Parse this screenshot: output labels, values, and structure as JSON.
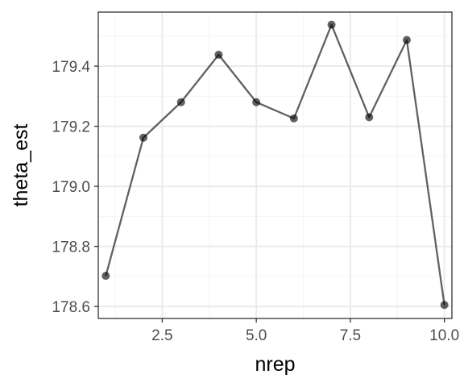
{
  "chart_data": {
    "type": "line",
    "xlabel": "nrep",
    "ylabel": "theta_est",
    "xlim": [
      0.8,
      10.2
    ],
    "ylim": [
      178.56,
      179.58
    ],
    "x_ticks": [
      2.5,
      5.0,
      7.5,
      10.0
    ],
    "x_tick_labels": [
      "2.5",
      "5.0",
      "7.5",
      "10.0"
    ],
    "x_minor_ticks": [
      1.25,
      3.75,
      6.25,
      8.75
    ],
    "y_ticks": [
      178.6,
      178.8,
      179.0,
      179.2,
      179.4
    ],
    "y_tick_labels": [
      "178.6",
      "178.8",
      "179.0",
      "179.2",
      "179.4"
    ],
    "y_minor_ticks": [
      178.7,
      178.9,
      179.1,
      179.3,
      179.5
    ],
    "grid": true,
    "theme": "bw",
    "colors": {
      "line": "#000000",
      "grid_major": "#ebebeb",
      "grid_minor": "#f5f5f5",
      "panel_border": "#333333"
    },
    "series": [
      {
        "x": [
          1,
          2,
          3,
          4,
          5,
          6,
          7,
          8,
          9,
          10
        ],
        "y": [
          178.702,
          179.162,
          179.28,
          179.438,
          179.28,
          179.226,
          179.538,
          179.23,
          179.487,
          178.605
        ]
      }
    ]
  }
}
